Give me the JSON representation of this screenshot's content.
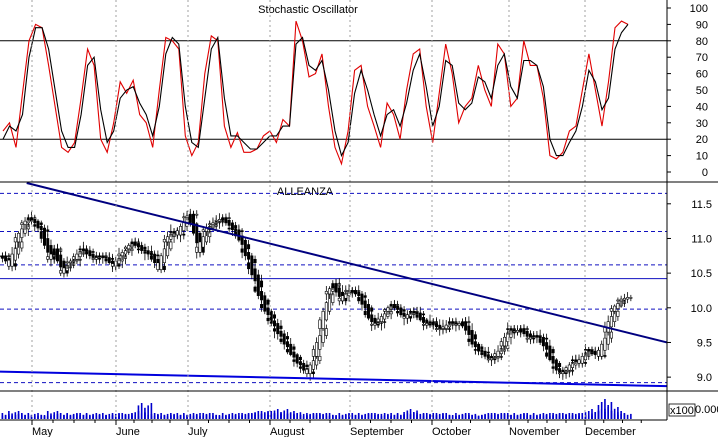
{
  "chart_data": [
    {
      "type": "line",
      "title": "Stochastic Oscillator",
      "ylim": [
        0,
        100
      ],
      "y_ticks": [
        "100",
        "90",
        "80",
        "70",
        "60",
        "50",
        "40",
        "30",
        "20",
        "10",
        "0"
      ],
      "reference_lines": [
        80,
        20
      ],
      "grid": true,
      "series": [
        {
          "color": "#e00000",
          "values": [
            25,
            30,
            15,
            48,
            80,
            90,
            88,
            65,
            40,
            15,
            12,
            18,
            45,
            75,
            65,
            20,
            12,
            30,
            55,
            48,
            56,
            35,
            30,
            15,
            50,
            82,
            80,
            75,
            22,
            10,
            18,
            60,
            83,
            80,
            28,
            15,
            24,
            12,
            12,
            14,
            22,
            25,
            18,
            32,
            28,
            92,
            80,
            58,
            60,
            72,
            40,
            15,
            5,
            25,
            62,
            65,
            40,
            28,
            15,
            42,
            35,
            20,
            50,
            72,
            75,
            40,
            18,
            48,
            78,
            60,
            30,
            40,
            45,
            65,
            50,
            40,
            78,
            72,
            40,
            45,
            80,
            65,
            65,
            45,
            10,
            8,
            12,
            25,
            28,
            50,
            72,
            50,
            28,
            55,
            88,
            92,
            90
          ]
        },
        {
          "color": "#000000",
          "values": [
            20,
            28,
            25,
            35,
            70,
            88,
            88,
            75,
            50,
            25,
            15,
            15,
            35,
            65,
            70,
            38,
            18,
            25,
            45,
            50,
            52,
            42,
            35,
            22,
            40,
            72,
            82,
            78,
            40,
            18,
            15,
            45,
            75,
            82,
            45,
            22,
            22,
            18,
            14,
            14,
            18,
            22,
            22,
            28,
            28,
            78,
            82,
            65,
            62,
            68,
            50,
            25,
            10,
            18,
            48,
            62,
            50,
            35,
            22,
            35,
            38,
            28,
            42,
            62,
            72,
            52,
            28,
            40,
            68,
            65,
            42,
            38,
            42,
            58,
            55,
            45,
            65,
            72,
            52,
            45,
            68,
            68,
            65,
            52,
            20,
            10,
            10,
            18,
            25,
            40,
            62,
            55,
            38,
            45,
            75,
            85,
            90
          ]
        }
      ]
    },
    {
      "type": "candlestick",
      "title": "ALLEANZA",
      "ylim": [
        8.8,
        11.8
      ],
      "y_ticks": [
        "11.5",
        "11.0",
        "10.5",
        "10.0",
        "9.5",
        "9.0"
      ],
      "dashed_levels": [
        11.65,
        11.1,
        10.62,
        9.98,
        8.92
      ],
      "solid_levels": [
        10.42
      ],
      "close": [
        10.75,
        10.6,
        10.95,
        11.2,
        11.3,
        11.2,
        11.1,
        10.7,
        10.85,
        10.5,
        10.65,
        10.7,
        10.85,
        10.8,
        10.7,
        10.75,
        10.7,
        10.6,
        10.75,
        10.85,
        10.95,
        10.85,
        10.8,
        10.75,
        10.55,
        10.95,
        11.1,
        11.05,
        11.3,
        11.35,
        10.8,
        11.1,
        11.2,
        11.25,
        11.3,
        11.15,
        11.1,
        10.85,
        10.65,
        10.3,
        10.05,
        9.85,
        9.7,
        9.55,
        9.4,
        9.25,
        9.15,
        9.05,
        9.3,
        9.7,
        10.2,
        10.35,
        10.1,
        10.25,
        10.25,
        10.15,
        9.95,
        9.75,
        9.8,
        9.95,
        10.05,
        9.95,
        9.85,
        9.95,
        9.9,
        9.75,
        9.8,
        9.7,
        9.7,
        9.8,
        9.75,
        9.8,
        9.55,
        9.4,
        9.35,
        9.25,
        9.3,
        9.45,
        9.7,
        9.65,
        9.7,
        9.55,
        9.6,
        9.55,
        9.35,
        9.15,
        9.05,
        9.1,
        9.25,
        9.2,
        9.4,
        9.35,
        9.3,
        9.65,
        9.95,
        10.1,
        10.15
      ],
      "volume": [
        3,
        2,
        4,
        3,
        2,
        3,
        2,
        2,
        4,
        3,
        2,
        3,
        3,
        2,
        3,
        2,
        3,
        2,
        3,
        3,
        2,
        4,
        8,
        3,
        2,
        3,
        2,
        3,
        2,
        3,
        2,
        3,
        3,
        2,
        2,
        3,
        2,
        3,
        3,
        3,
        4,
        4,
        3,
        5,
        3,
        4,
        3,
        2,
        3,
        3,
        3,
        2,
        2,
        3,
        3,
        2,
        3,
        3,
        3,
        2,
        3,
        2,
        3,
        5,
        3,
        3,
        2,
        3,
        3,
        2,
        2,
        3,
        3,
        2,
        2,
        3,
        3,
        3,
        3,
        2,
        3,
        3,
        2,
        3,
        2,
        3,
        3,
        2,
        3,
        3,
        2,
        4,
        5,
        10,
        6,
        4,
        3
      ],
      "trendlines": [
        {
          "name": "resistance",
          "color": "#000080",
          "from": [
            0.04,
            11.8
          ],
          "to": [
            1.0,
            9.5
          ]
        },
        {
          "name": "support",
          "color": "#0000dd",
          "from": [
            0.0,
            9.08
          ],
          "to": [
            1.0,
            8.87
          ]
        }
      ],
      "volume_unit_label": "x100",
      "volume_tick_label": "0.000",
      "x_labels": [
        "May",
        "June",
        "July",
        "August",
        "September",
        "October",
        "November",
        "December"
      ]
    }
  ]
}
